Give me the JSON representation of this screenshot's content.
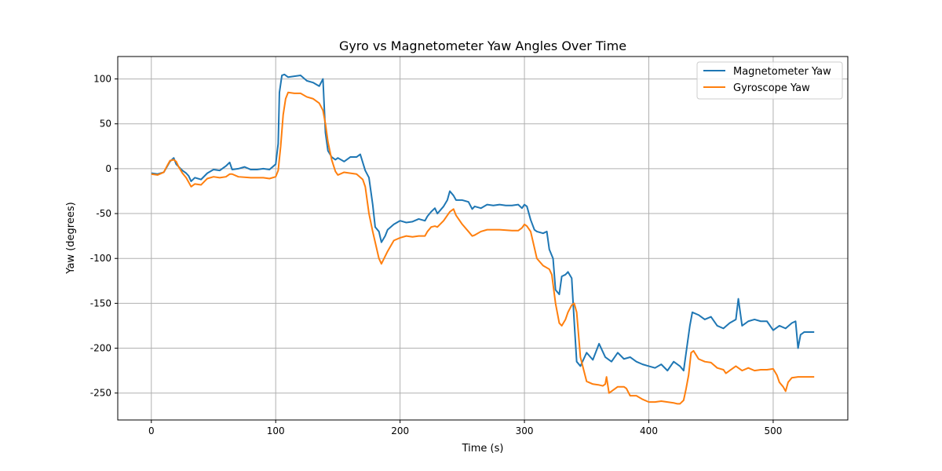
{
  "chart_data": {
    "type": "line",
    "title": "Gyro vs Magnetometer Yaw Angles Over Time",
    "xlabel": "Time (s)",
    "ylabel": "Yaw (degrees)",
    "xlim": [
      -27,
      560
    ],
    "ylim": [
      -280,
      125
    ],
    "xticks": [
      0,
      100,
      200,
      300,
      400,
      500
    ],
    "yticks": [
      100,
      50,
      0,
      -50,
      -100,
      -150,
      -200,
      -250
    ],
    "grid": true,
    "legend_position": "top-right",
    "series": [
      {
        "name": "Magnetometer Yaw",
        "color": "#1f77b4",
        "x": [
          0,
          5,
          10,
          15,
          18,
          20,
          25,
          28,
          30,
          32,
          35,
          40,
          45,
          50,
          55,
          60,
          63,
          65,
          70,
          75,
          80,
          85,
          90,
          95,
          100,
          102,
          103,
          105,
          107,
          110,
          115,
          120,
          125,
          130,
          135,
          138,
          140,
          142,
          145,
          148,
          150,
          155,
          160,
          165,
          168,
          170,
          172,
          175,
          178,
          180,
          183,
          185,
          188,
          190,
          195,
          200,
          205,
          210,
          215,
          220,
          222,
          225,
          228,
          230,
          235,
          238,
          240,
          243,
          245,
          250,
          255,
          258,
          260,
          265,
          270,
          275,
          280,
          285,
          290,
          295,
          298,
          300,
          302,
          305,
          308,
          310,
          315,
          318,
          320,
          323,
          325,
          328,
          330,
          333,
          335,
          338,
          340,
          342,
          345,
          350,
          355,
          360,
          365,
          370,
          375,
          380,
          385,
          390,
          395,
          400,
          405,
          410,
          415,
          420,
          425,
          428,
          430,
          433,
          435,
          440,
          445,
          450,
          455,
          460,
          465,
          470,
          472,
          475,
          478,
          480,
          485,
          490,
          495,
          500,
          505,
          510,
          515,
          518,
          520,
          522,
          525,
          530,
          533
        ],
        "values": [
          -5,
          -6,
          -4,
          8,
          12,
          5,
          -2,
          -5,
          -8,
          -14,
          -10,
          -12,
          -5,
          -1,
          -2,
          3,
          7,
          -1,
          0,
          2,
          -1,
          -1,
          0,
          -1,
          5,
          28,
          85,
          104,
          105,
          102,
          103,
          104,
          98,
          96,
          92,
          100,
          40,
          20,
          13,
          10,
          12,
          8,
          13,
          13,
          16,
          7,
          -2,
          -10,
          -40,
          -65,
          -70,
          -82,
          -75,
          -68,
          -62,
          -58,
          -60,
          -59,
          -56,
          -58,
          -53,
          -48,
          -44,
          -50,
          -42,
          -35,
          -25,
          -30,
          -35,
          -35,
          -37,
          -45,
          -42,
          -44,
          -40,
          -41,
          -40,
          -41,
          -41,
          -40,
          -44,
          -40,
          -42,
          -57,
          -68,
          -70,
          -72,
          -70,
          -90,
          -100,
          -135,
          -140,
          -120,
          -118,
          -115,
          -122,
          -170,
          -215,
          -220,
          -205,
          -213,
          -195,
          -210,
          -215,
          -205,
          -212,
          -210,
          -215,
          -218,
          -220,
          -222,
          -218,
          -225,
          -215,
          -220,
          -225,
          -205,
          -175,
          -160,
          -163,
          -168,
          -165,
          -175,
          -178,
          -172,
          -168,
          -145,
          -175,
          -172,
          -170,
          -168,
          -170,
          -170,
          -180,
          -175,
          -178,
          -172,
          -170,
          -200,
          -185,
          -182,
          -182,
          -182
        ]
      },
      {
        "name": "Gyroscope Yaw",
        "color": "#ff7f0e",
        "x": [
          0,
          5,
          10,
          13,
          15,
          18,
          20,
          22,
          25,
          28,
          30,
          32,
          35,
          40,
          45,
          50,
          55,
          60,
          63,
          65,
          70,
          80,
          90,
          95,
          100,
          102,
          104,
          106,
          108,
          110,
          115,
          120,
          125,
          130,
          135,
          138,
          140,
          142,
          145,
          148,
          150,
          155,
          160,
          165,
          170,
          172,
          175,
          178,
          180,
          183,
          185,
          190,
          195,
          200,
          205,
          210,
          215,
          220,
          222,
          225,
          228,
          230,
          235,
          240,
          243,
          245,
          250,
          255,
          258,
          260,
          265,
          270,
          280,
          290,
          295,
          298,
          300,
          302,
          305,
          310,
          315,
          320,
          322,
          325,
          328,
          330,
          333,
          335,
          338,
          340,
          342,
          345,
          350,
          355,
          360,
          363,
          365,
          366,
          368,
          370,
          375,
          380,
          382,
          385,
          390,
          395,
          400,
          405,
          410,
          415,
          420,
          423,
          425,
          428,
          430,
          432,
          434,
          436,
          440,
          445,
          450,
          455,
          460,
          462,
          465,
          470,
          472,
          475,
          480,
          485,
          490,
          495,
          500,
          503,
          505,
          508,
          510,
          512,
          515,
          520,
          525,
          530,
          533
        ],
        "values": [
          -6,
          -7,
          -4,
          4,
          9,
          10,
          8,
          2,
          -5,
          -10,
          -15,
          -20,
          -17,
          -18,
          -11,
          -9,
          -10,
          -9,
          -6,
          -6,
          -9,
          -10,
          -10,
          -11,
          -9,
          -2,
          25,
          60,
          78,
          85,
          84,
          84,
          80,
          78,
          73,
          65,
          50,
          30,
          10,
          -3,
          -7,
          -4,
          -5,
          -6,
          -12,
          -20,
          -50,
          -70,
          -82,
          -100,
          -106,
          -92,
          -80,
          -77,
          -75,
          -76,
          -75,
          -75,
          -70,
          -65,
          -64,
          -65,
          -58,
          -48,
          -45,
          -52,
          -62,
          -70,
          -75,
          -74,
          -70,
          -68,
          -68,
          -69,
          -69,
          -66,
          -62,
          -64,
          -70,
          -100,
          -108,
          -112,
          -118,
          -150,
          -172,
          -175,
          -168,
          -160,
          -152,
          -150,
          -160,
          -210,
          -237,
          -240,
          -241,
          -242,
          -240,
          -232,
          -250,
          -248,
          -243,
          -243,
          -245,
          -253,
          -253,
          -257,
          -260,
          -260,
          -259,
          -260,
          -261,
          -262,
          -262,
          -258,
          -245,
          -230,
          -205,
          -203,
          -212,
          -215,
          -216,
          -222,
          -224,
          -228,
          -225,
          -220,
          -222,
          -225,
          -222,
          -225,
          -224,
          -224,
          -223,
          -230,
          -238,
          -243,
          -248,
          -238,
          -233,
          -232,
          -232,
          -232,
          -232
        ]
      }
    ]
  }
}
